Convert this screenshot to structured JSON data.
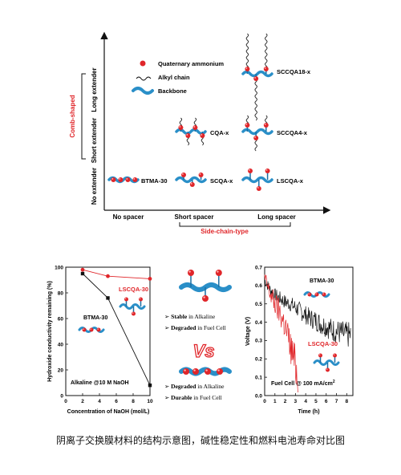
{
  "colors": {
    "backbone": "#2a8fc8",
    "backbone_dark": "#1a6fa5",
    "ammonium": "#e0262a",
    "accent_red": "#e0262a",
    "axis": "#111111"
  },
  "top_panel": {
    "legend": {
      "quaternary": "Quaternary ammonium",
      "alkyl": "Alkyl chain",
      "backbone": "Backbone"
    },
    "y_labels": {
      "long_extender": "Long extender",
      "short_extender": "Short extender",
      "no_extender": "No extender",
      "comb_shaped": "Comb-shaped"
    },
    "x_labels": {
      "no_spacer": "No spacer",
      "short_spacer": "Short spacer",
      "long_spacer": "Long spacer",
      "side_chain_type": "Side-chain-type"
    },
    "structures": {
      "btma": "BTMA-30",
      "scqa": "SCQA-x",
      "lscqa": "LSCQA-x",
      "cqa": "CQA-x",
      "sccqa4": "SCCQA4-x",
      "sccqa18": "SCCQA18-x"
    }
  },
  "left_chart": {
    "ylabel": "Hydroxide conductivity remaining (%)",
    "xlabel": "Concentration of NaOH (mol/L)",
    "condition": "Alkaline @10 M NaOH",
    "series_labels": [
      "LSCQA-30",
      "BTMA-30"
    ]
  },
  "middle_panel": {
    "stable": "Stable",
    "in_alkaline_1": " in Alkaline",
    "degraded": "Degraded",
    "in_fuel_cell_1": " in Fuel Cell",
    "vs": "Vs",
    "degraded_2": "Degraded",
    "in_alkaline_2": " in Alkaline",
    "durable": "Durable",
    "in_fuel_cell_2": " in Fuel Cell"
  },
  "right_chart": {
    "ylabel": "Voltage (V)",
    "xlabel": "Time (h)",
    "condition_prefix": "Fuel Cell @ 100 mA/cm",
    "condition_sup": "2",
    "series_labels": [
      "BTMA-30",
      "LSCQA-30"
    ]
  },
  "caption": "阴离子交换膜材料的结构示意图，碱性稳定性和燃料电池寿命对比图",
  "chart_data": [
    {
      "type": "line",
      "title": "",
      "xlabel": "Concentration of NaOH (mol/L)",
      "ylabel": "Hydroxide conductivity remaining (%)",
      "xlim": [
        0,
        10
      ],
      "ylim": [
        0,
        100
      ],
      "x_ticks": [
        0,
        2,
        4,
        6,
        8,
        10
      ],
      "y_ticks": [
        0,
        20,
        40,
        60,
        80,
        100
      ],
      "series": [
        {
          "name": "LSCQA-30",
          "color": "#e0262a",
          "marker": "circle",
          "x": [
            2,
            5,
            10
          ],
          "y": [
            98,
            93,
            91
          ]
        },
        {
          "name": "BTMA-30",
          "color": "#111111",
          "marker": "square",
          "x": [
            2,
            5,
            10
          ],
          "y": [
            95,
            76,
            8
          ]
        }
      ]
    },
    {
      "type": "line",
      "title": "",
      "xlabel": "Time (h)",
      "ylabel": "Voltage (V)",
      "xlim": [
        0,
        8
      ],
      "ylim": [
        0,
        0.7
      ],
      "x_ticks": [
        0,
        1,
        2,
        3,
        4,
        5,
        6,
        7,
        8
      ],
      "y_ticks": [
        0.0,
        0.1,
        0.2,
        0.3,
        0.4,
        0.5,
        0.6,
        0.7
      ],
      "series": [
        {
          "name": "BTMA-30",
          "color": "#111111",
          "x": [
            0,
            0.5,
            1,
            1.5,
            2,
            2.5,
            3,
            3.5,
            4,
            4.5,
            5,
            5.5,
            6,
            6.5,
            7,
            7.5,
            8,
            8.4
          ],
          "y": [
            0.63,
            0.58,
            0.55,
            0.53,
            0.51,
            0.5,
            0.48,
            0.46,
            0.44,
            0.42,
            0.41,
            0.39,
            0.38,
            0.36,
            0.35,
            0.34,
            0.33,
            0.33
          ]
        },
        {
          "name": "LSCQA-30",
          "color": "#e0262a",
          "x": [
            0,
            0.5,
            1,
            1.5,
            2,
            2.5,
            3,
            3.3
          ],
          "y": [
            0.64,
            0.56,
            0.5,
            0.45,
            0.38,
            0.27,
            0.17,
            0.06
          ]
        }
      ]
    }
  ]
}
